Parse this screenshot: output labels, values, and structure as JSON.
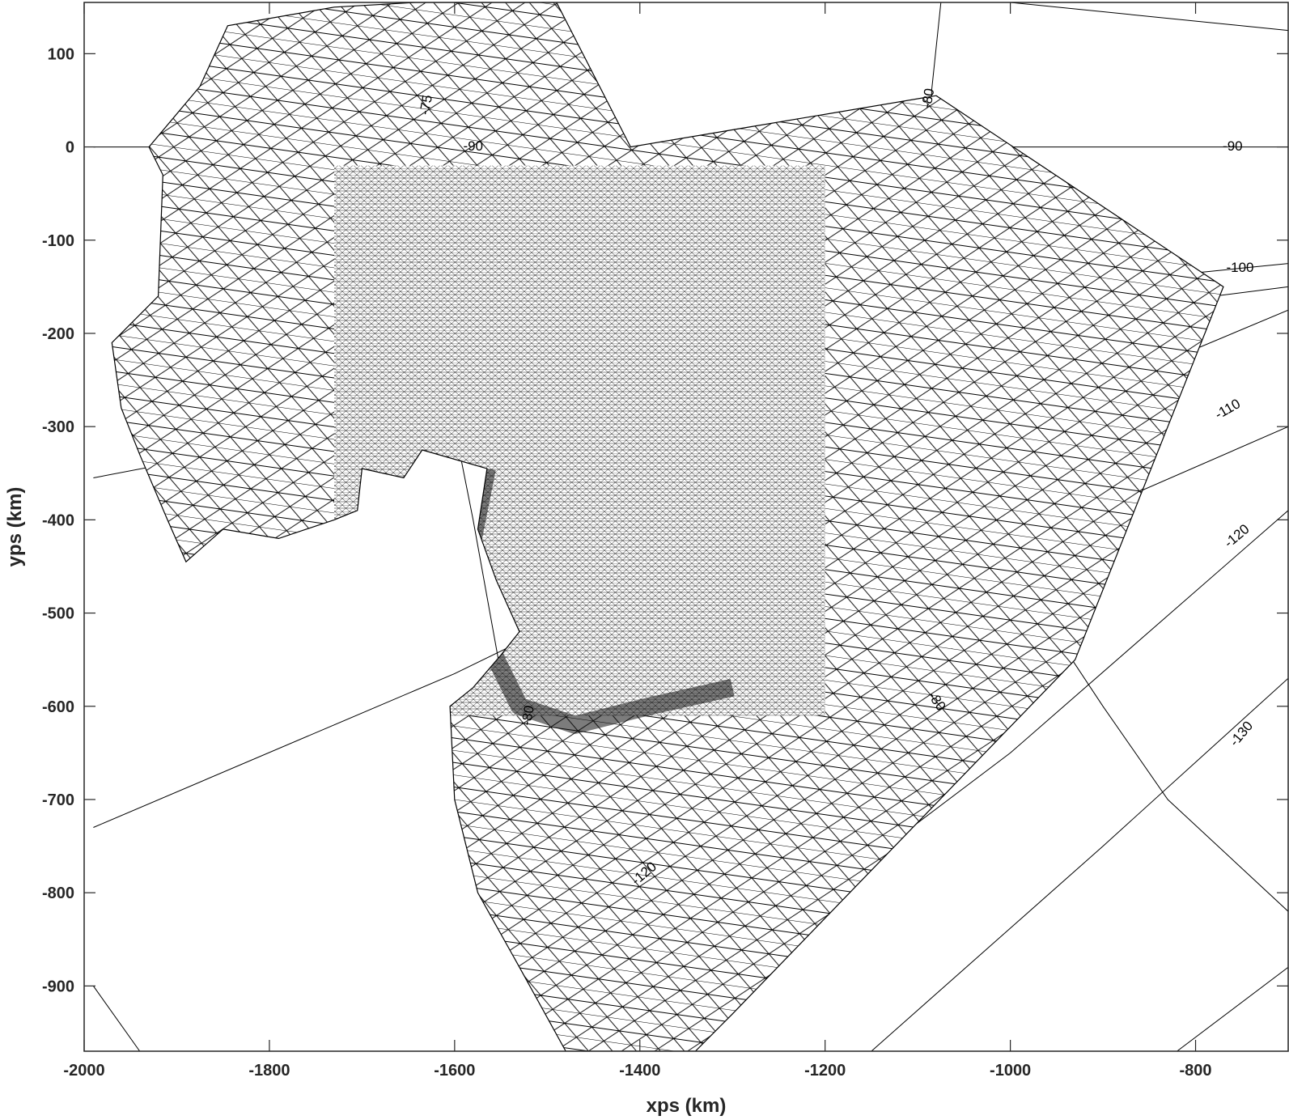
{
  "chart_data": {
    "type": "mesh",
    "xlabel": "xps (km)",
    "ylabel": "yps (km)",
    "xlim": [
      -2000,
      -700
    ],
    "ylim": [
      -970,
      155
    ],
    "x_ticks": [
      -2000,
      -1800,
      -1600,
      -1400,
      -1200,
      -1000,
      -800
    ],
    "y_ticks": [
      100,
      0,
      -100,
      -200,
      -300,
      -400,
      -500,
      -600,
      -700,
      -800,
      -900
    ],
    "x_tick_labels": [
      "-2000",
      "-1800",
      "-1600",
      "-1400",
      "-1200",
      "-1000",
      "-800"
    ],
    "y_tick_labels": [
      "100",
      "0",
      "-100",
      "-200",
      "-300",
      "-400",
      "-500",
      "-600",
      "-700",
      "-800",
      "-900"
    ],
    "graticule_labels": [
      "-75",
      "-80",
      "-90",
      "-90",
      "-100",
      "-110",
      "-120",
      "-130",
      "-80",
      "-120",
      "-80"
    ],
    "mesh_outline": [
      [
        -1642,
        155
      ],
      [
        -1490,
        155
      ],
      [
        -1410,
        0
      ],
      [
        -1290,
        20
      ],
      [
        -1080,
        55
      ],
      [
        -770,
        -150
      ],
      [
        -930,
        -550
      ],
      [
        -1300,
        -930
      ],
      [
        -1340,
        -970
      ],
      [
        -1480,
        -970
      ],
      [
        -1530,
        -880
      ],
      [
        -1575,
        -800
      ],
      [
        -1600,
        -700
      ],
      [
        -1605,
        -600
      ],
      [
        -1580,
        -580
      ],
      [
        -1550,
        -545
      ],
      [
        -1530,
        -520
      ],
      [
        -1555,
        -465
      ],
      [
        -1575,
        -410
      ],
      [
        -1565,
        -345
      ],
      [
        -1635,
        -325
      ],
      [
        -1655,
        -355
      ],
      [
        -1700,
        -345
      ],
      [
        -1705,
        -390
      ],
      [
        -1730,
        -400
      ],
      [
        -1790,
        -420
      ],
      [
        -1850,
        -410
      ],
      [
        -1890,
        -445
      ],
      [
        -1910,
        -400
      ],
      [
        -1940,
        -330
      ],
      [
        -1960,
        -280
      ],
      [
        -1970,
        -210
      ],
      [
        -1920,
        -160
      ],
      [
        -1915,
        -30
      ],
      [
        -1930,
        0
      ],
      [
        -1875,
        65
      ],
      [
        -1845,
        130
      ],
      [
        -1730,
        150
      ]
    ],
    "fine_region": [
      -1730,
      -1200,
      -610,
      -20
    ],
    "coastline": [
      [
        -1565,
        -345
      ],
      [
        -1580,
        -420
      ],
      [
        -1590,
        -490
      ],
      [
        -1560,
        -540
      ],
      [
        -1530,
        -600
      ],
      [
        -1470,
        -620
      ],
      [
        -1390,
        -600
      ],
      [
        -1300,
        -580
      ]
    ],
    "graticule_lines": [
      [
        [
          -1990,
          -355
        ],
        [
          -1700,
          -300
        ],
        [
          -1400,
          -240
        ],
        [
          -1200,
          -200
        ],
        [
          -1000,
          -155
        ],
        [
          -700,
          -125
        ]
      ],
      [
        [
          -1990,
          -730
        ],
        [
          -1600,
          -565
        ],
        [
          -1300,
          -420
        ],
        [
          -1000,
          -300
        ],
        [
          -700,
          -175
        ]
      ],
      [
        [
          -1440,
          -970
        ],
        [
          -1200,
          -800
        ],
        [
          -1000,
          -650
        ],
        [
          -700,
          -390
        ]
      ],
      [
        [
          -1150,
          -970
        ],
        [
          -900,
          -750
        ],
        [
          -700,
          -570
        ]
      ],
      [
        [
          -820,
          -970
        ],
        [
          -700,
          -880
        ]
      ],
      [
        [
          -1990,
          0
        ],
        [
          -700,
          0
        ]
      ],
      [
        [
          -1990,
          -900
        ],
        [
          -1940,
          -970
        ]
      ],
      [
        [
          -1630,
          155
        ],
        [
          -1620,
          -200
        ],
        [
          -1580,
          -400
        ],
        [
          -1540,
          -620
        ],
        [
          -1510,
          -730
        ]
      ],
      [
        [
          -1075,
          155
        ],
        [
          -1085,
          60
        ],
        [
          -1080,
          -150
        ],
        [
          -1050,
          -300
        ],
        [
          -1000,
          -450
        ],
        [
          -900,
          -600
        ],
        [
          -830,
          -700
        ],
        [
          -700,
          -820
        ]
      ],
      [
        [
          -700,
          -300
        ],
        [
          -1000,
          -430
        ],
        [
          -1200,
          -470
        ],
        [
          -1400,
          -520
        ]
      ],
      [
        [
          -700,
          -150
        ],
        [
          -1100,
          -200
        ],
        [
          -1500,
          -250
        ],
        [
          -1700,
          -260
        ]
      ],
      [
        [
          -1000,
          155
        ],
        [
          -700,
          125
        ]
      ]
    ],
    "graticule_label_positions": [
      [
        -1630,
        45
      ],
      [
        -1088,
        52
      ],
      [
        -1580,
        0
      ],
      [
        -760,
        0
      ],
      [
        -752,
        -130
      ],
      [
        -765,
        -282
      ],
      [
        -755,
        -418
      ],
      [
        -750,
        -630
      ],
      [
        -1080,
        -595
      ],
      [
        -1395,
        -780
      ],
      [
        -1520,
        -610
      ]
    ],
    "graticule_label_angles": [
      -80,
      -80,
      0,
      0,
      0,
      -30,
      -40,
      -50,
      55,
      -40,
      -80
    ]
  }
}
